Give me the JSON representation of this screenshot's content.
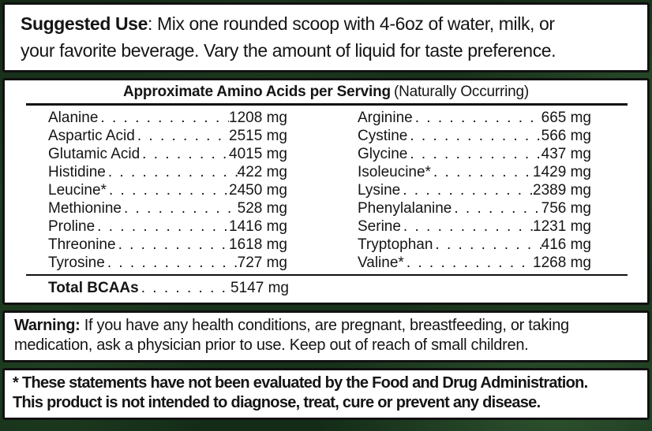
{
  "colors": {
    "background_green": "#1d3a1e",
    "panel_white": "#ffffff",
    "border_black": "#111111",
    "text_black": "#151515"
  },
  "suggested_use": {
    "heading": "Suggested Use",
    "line1_rest": ": Mix one rounded scoop with 4-6oz of water, milk, or",
    "line2": "your favorite beverage. Vary the amount of liquid for taste preference."
  },
  "amino_acids": {
    "title_bold": "Approximate Amino Acids per Serving",
    "title_normal": "(Naturally Occurring)",
    "left": [
      {
        "name": "Alanine",
        "value": "1208 mg"
      },
      {
        "name": "Aspartic Acid",
        "value": "2515 mg"
      },
      {
        "name": "Glutamic Acid",
        "value": "4015 mg"
      },
      {
        "name": "Histidine",
        "value": "422 mg"
      },
      {
        "name": "Leucine*",
        "value": "2450 mg"
      },
      {
        "name": "Methionine",
        "value": "528 mg"
      },
      {
        "name": "Proline",
        "value": "1416 mg"
      },
      {
        "name": "Threonine",
        "value": "1618 mg"
      },
      {
        "name": "Tyrosine",
        "value": "727 mg"
      }
    ],
    "right": [
      {
        "name": "Arginine",
        "value": "665 mg"
      },
      {
        "name": "Cystine",
        "value": "566 mg"
      },
      {
        "name": "Glycine",
        "value": "437 mg"
      },
      {
        "name": "Isoleucine*",
        "value": "1429 mg"
      },
      {
        "name": "Lysine",
        "value": "2389 mg"
      },
      {
        "name": "Phenylalanine",
        "value": "756 mg"
      },
      {
        "name": "Serine",
        "value": "1231 mg"
      },
      {
        "name": "Tryptophan",
        "value": "416 mg"
      },
      {
        "name": "Valine*",
        "value": "1268 mg"
      }
    ],
    "total": {
      "name": "Total BCAAs",
      "value": "5147 mg"
    }
  },
  "warning": {
    "heading": "Warning:",
    "line1_rest": " If you have any health conditions, are pregnant, breastfeeding, or taking",
    "line2": "medication, ask a physician prior to use. Keep out of reach of small children."
  },
  "disclaimer": {
    "line1": "* These statements have not been evaluated by the Food and Drug Administration.",
    "line2": "This product is not intended to diagnose, treat, cure or prevent any disease."
  }
}
